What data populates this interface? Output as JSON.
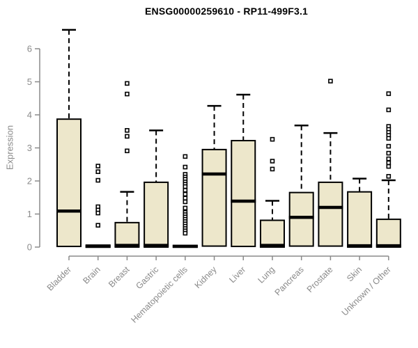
{
  "title": "ENSG00000259610 - RP11-499F3.1",
  "colors": {
    "background": "#ffffff",
    "box_fill": "#EDE7CB",
    "box_stroke": "#000000",
    "median": "#000000",
    "whisker": "#000000",
    "outlier_stroke": "#000000",
    "outlier_fill": "#ffffff",
    "axis_line": "#8a8a8a",
    "axis_text": "#8a8a8a",
    "title_color": "#000000"
  },
  "chart_data": {
    "type": "boxplot",
    "title": "ENSG00000259610 - RP11-499F3.1",
    "xlabel": "",
    "ylabel": "Expression",
    "ylim": [
      0,
      6.6
    ],
    "yticks": [
      0,
      1,
      2,
      3,
      4,
      5,
      6
    ],
    "grid": false,
    "legend": "none",
    "categories": [
      "Bladder",
      "Brain",
      "Breast",
      "Gastric",
      "Hematopoietic cells",
      "Kidney",
      "Liver",
      "Lung",
      "Pancreas",
      "Prostate",
      "Skin",
      "Unknown / Other"
    ],
    "series": [
      {
        "name": "Bladder",
        "slug": "bladder",
        "q1": 0.02,
        "median": 1.09,
        "q3": 3.87,
        "whisker_low": 0.02,
        "whisker_high": 6.57,
        "outliers": []
      },
      {
        "name": "Brain",
        "slug": "brain",
        "q1": 0.0,
        "median": 0.02,
        "q3": 0.06,
        "whisker_low": 0.0,
        "whisker_high": 0.06,
        "outliers": [
          2.45,
          2.28,
          2.02,
          1.22,
          1.12,
          1.03,
          0.66
        ]
      },
      {
        "name": "Breast",
        "slug": "breast",
        "q1": 0.0,
        "median": 0.05,
        "q3": 0.74,
        "whisker_low": 0.0,
        "whisker_high": 1.67,
        "outliers": [
          4.95,
          4.63,
          3.53,
          3.35,
          2.91
        ]
      },
      {
        "name": "Gastric",
        "slug": "gastric",
        "q1": 0.0,
        "median": 0.05,
        "q3": 1.96,
        "whisker_low": 0.0,
        "whisker_high": 3.53,
        "outliers": []
      },
      {
        "name": "Hematopoietic cells",
        "slug": "hematopoietic-cells",
        "q1": 0.0,
        "median": 0.02,
        "q3": 0.05,
        "whisker_low": 0.0,
        "whisker_high": 0.05,
        "outliers": [
          2.74,
          2.42,
          2.2,
          2.12,
          2.05,
          1.97,
          1.9,
          1.83,
          1.72,
          1.6,
          1.48,
          1.37,
          1.18,
          1.05,
          0.98,
          0.91,
          0.84,
          0.77,
          0.7,
          0.63,
          0.56,
          0.49,
          0.42
        ]
      },
      {
        "name": "Kidney",
        "slug": "kidney",
        "q1": 0.03,
        "median": 2.21,
        "q3": 2.95,
        "whisker_low": 0.03,
        "whisker_high": 4.27,
        "outliers": []
      },
      {
        "name": "Liver",
        "slug": "liver",
        "q1": 0.02,
        "median": 1.39,
        "q3": 3.22,
        "whisker_low": 0.02,
        "whisker_high": 4.61,
        "outliers": []
      },
      {
        "name": "Lung",
        "slug": "lung",
        "q1": 0.0,
        "median": 0.05,
        "q3": 0.81,
        "whisker_low": 0.0,
        "whisker_high": 1.4,
        "outliers": [
          3.26,
          2.6,
          2.36
        ]
      },
      {
        "name": "Pancreas",
        "slug": "pancreas",
        "q1": 0.03,
        "median": 0.9,
        "q3": 1.65,
        "whisker_low": 0.03,
        "whisker_high": 3.68,
        "outliers": []
      },
      {
        "name": "Prostate",
        "slug": "prostate",
        "q1": 0.03,
        "median": 1.2,
        "q3": 1.96,
        "whisker_low": 0.03,
        "whisker_high": 3.45,
        "outliers": [
          5.02
        ]
      },
      {
        "name": "Skin",
        "slug": "skin",
        "q1": 0.0,
        "median": 0.04,
        "q3": 1.67,
        "whisker_low": 0.0,
        "whisker_high": 2.07,
        "outliers": []
      },
      {
        "name": "Unknown / Other",
        "slug": "unknown-other",
        "q1": 0.0,
        "median": 0.04,
        "q3": 0.84,
        "whisker_low": 0.0,
        "whisker_high": 2.02,
        "outliers": [
          4.64,
          4.15,
          3.65,
          3.56,
          3.47,
          3.38,
          3.29,
          3.05,
          2.84,
          2.67,
          2.55,
          2.44,
          2.14
        ]
      }
    ]
  }
}
